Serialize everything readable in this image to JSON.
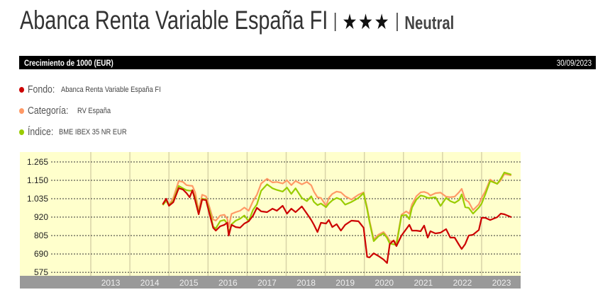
{
  "header": {
    "title": "Abanca Renta Variable España FI",
    "stars": "★★★",
    "rating": "Neutral"
  },
  "bar": {
    "label": "Crecimiento de 1000 (EUR)",
    "date": "30/09/2023"
  },
  "legend": [
    {
      "key": "Fondo:",
      "value": "Abanca Renta Variable España FI",
      "color": "#cc0000"
    },
    {
      "key": "Categoría:",
      "value": "RV España",
      "color": "#ff9966"
    },
    {
      "key": "Índice:",
      "value": "BME IBEX 35 NR EUR",
      "color": "#99cc00"
    }
  ],
  "colors": {
    "plot_bg": "#ffffcc",
    "axis_bg": "#999999",
    "grid": "#333333",
    "vgrid": "#d8d4a8",
    "tick_text": "#eeeeee"
  },
  "chart_data": {
    "type": "line",
    "title": "Crecimiento de 1000 (EUR)",
    "ylim": [
      575,
      1265
    ],
    "yticks": [
      "1.265",
      "1.150",
      "1.035",
      "920",
      "805",
      "690",
      "575"
    ],
    "ytick_values": [
      1265,
      1150,
      1035,
      920,
      805,
      690,
      575
    ],
    "xlim": [
      2011.18,
      2024
    ],
    "xticks": [
      "2013",
      "2014",
      "2015",
      "2016",
      "2017",
      "2018",
      "2019",
      "2020",
      "2021",
      "2022",
      "2023"
    ],
    "x": [
      2014.84,
      2014.93,
      2015.0,
      2015.11,
      2015.25,
      2015.36,
      2015.45,
      2015.53,
      2015.6,
      2015.67,
      2015.76,
      2015.85,
      2015.95,
      2016.04,
      2016.13,
      2016.2,
      2016.31,
      2016.42,
      2016.49,
      2016.53,
      2016.6,
      2016.71,
      2016.82,
      2016.93,
      2017.04,
      2017.15,
      2017.25,
      2017.36,
      2017.51,
      2017.65,
      2017.76,
      2017.91,
      2018.02,
      2018.13,
      2018.24,
      2018.4,
      2018.53,
      2018.64,
      2018.71,
      2018.8,
      2018.89,
      2019.02,
      2019.09,
      2019.18,
      2019.29,
      2019.4,
      2019.51,
      2019.67,
      2019.85,
      2019.98,
      2020.07,
      2020.13,
      2020.24,
      2020.36,
      2020.49,
      2020.58,
      2020.65,
      2020.75,
      2020.82,
      2020.95,
      2021.07,
      2021.15,
      2021.22,
      2021.33,
      2021.44,
      2021.53,
      2021.62,
      2021.69,
      2021.82,
      2021.95,
      2022.09,
      2022.2,
      2022.31,
      2022.42,
      2022.49,
      2022.58,
      2022.67,
      2022.78,
      2022.93,
      2023.0,
      2023.09,
      2023.22,
      2023.4,
      2023.49,
      2023.58,
      2023.76
    ],
    "series": [
      {
        "name": "Fondo",
        "color": "#cc0000",
        "values": [
          1000,
          1035,
          991,
          1013,
          1101,
          1092,
          1070,
          1044,
          1088,
          1026,
          938,
          1030,
          1026,
          938,
          854,
          836,
          863,
          872,
          885,
          805,
          872,
          858,
          854,
          880,
          894,
          929,
          978,
          956,
          951,
          973,
          960,
          991,
          942,
          973,
          951,
          987,
          942,
          902,
          872,
          827,
          885,
          880,
          902,
          858,
          876,
          836,
          872,
          898,
          894,
          854,
          672,
          668,
          694,
          677,
          655,
          633,
          752,
          774,
          739,
          805,
          845,
          872,
          836,
          836,
          832,
          867,
          792,
          832,
          818,
          823,
          845,
          792,
          792,
          748,
          721,
          752,
          805,
          810,
          840,
          916,
          916,
          902,
          920,
          942,
          938,
          920
        ]
      },
      {
        "name": "Categoría",
        "color": "#ff9966",
        "values": [
          1000,
          1030,
          995,
          1040,
          1146,
          1140,
          1120,
          1117,
          1115,
          1075,
          960,
          1060,
          1050,
          980,
          905,
          898,
          930,
          935,
          910,
          860,
          940,
          951,
          960,
          980,
          960,
          1020,
          1060,
          1130,
          1160,
          1137,
          1140,
          1130,
          1150,
          1120,
          1146,
          1125,
          1140,
          1119,
          1080,
          1044,
          1040,
          991,
          1040,
          1065,
          1080,
          1075,
          1050,
          1030,
          1060,
          1075,
          980,
          900,
          780,
          810,
          827,
          800,
          770,
          770,
          760,
          935,
          956,
          942,
          1000,
          1050,
          1075,
          1078,
          1070,
          1055,
          1070,
          1073,
          1048,
          1045,
          1048,
          1075,
          1097,
          1030,
          1015,
          964,
          1000,
          1040,
          1080,
          1155,
          1128,
          1150,
          1190,
          1181
        ]
      },
      {
        "name": "Índice",
        "color": "#99cc00",
        "values": [
          995,
          1022,
          995,
          1020,
          1115,
          1100,
          1088,
          1085,
          1086,
          1040,
          945,
          1035,
          1030,
          960,
          860,
          850,
          895,
          902,
          880,
          820,
          875,
          898,
          910,
          930,
          895,
          965,
          1000,
          1085,
          1125,
          1100,
          1090,
          1080,
          1105,
          1065,
          1100,
          1040,
          1020,
          1050,
          1015,
          995,
          1005,
          982,
          1005,
          1025,
          1040,
          1030,
          998,
          1015,
          1040,
          1070,
          970,
          890,
          770,
          800,
          818,
          790,
          755,
          750,
          745,
          930,
          933,
          907,
          980,
          1030,
          1055,
          1050,
          1040,
          1040,
          1044,
          990,
          1040,
          1020,
          1009,
          1026,
          1062,
          982,
          978,
          942,
          980,
          1004,
          1060,
          1146,
          1128,
          1160,
          1199,
          1186
        ]
      }
    ]
  }
}
